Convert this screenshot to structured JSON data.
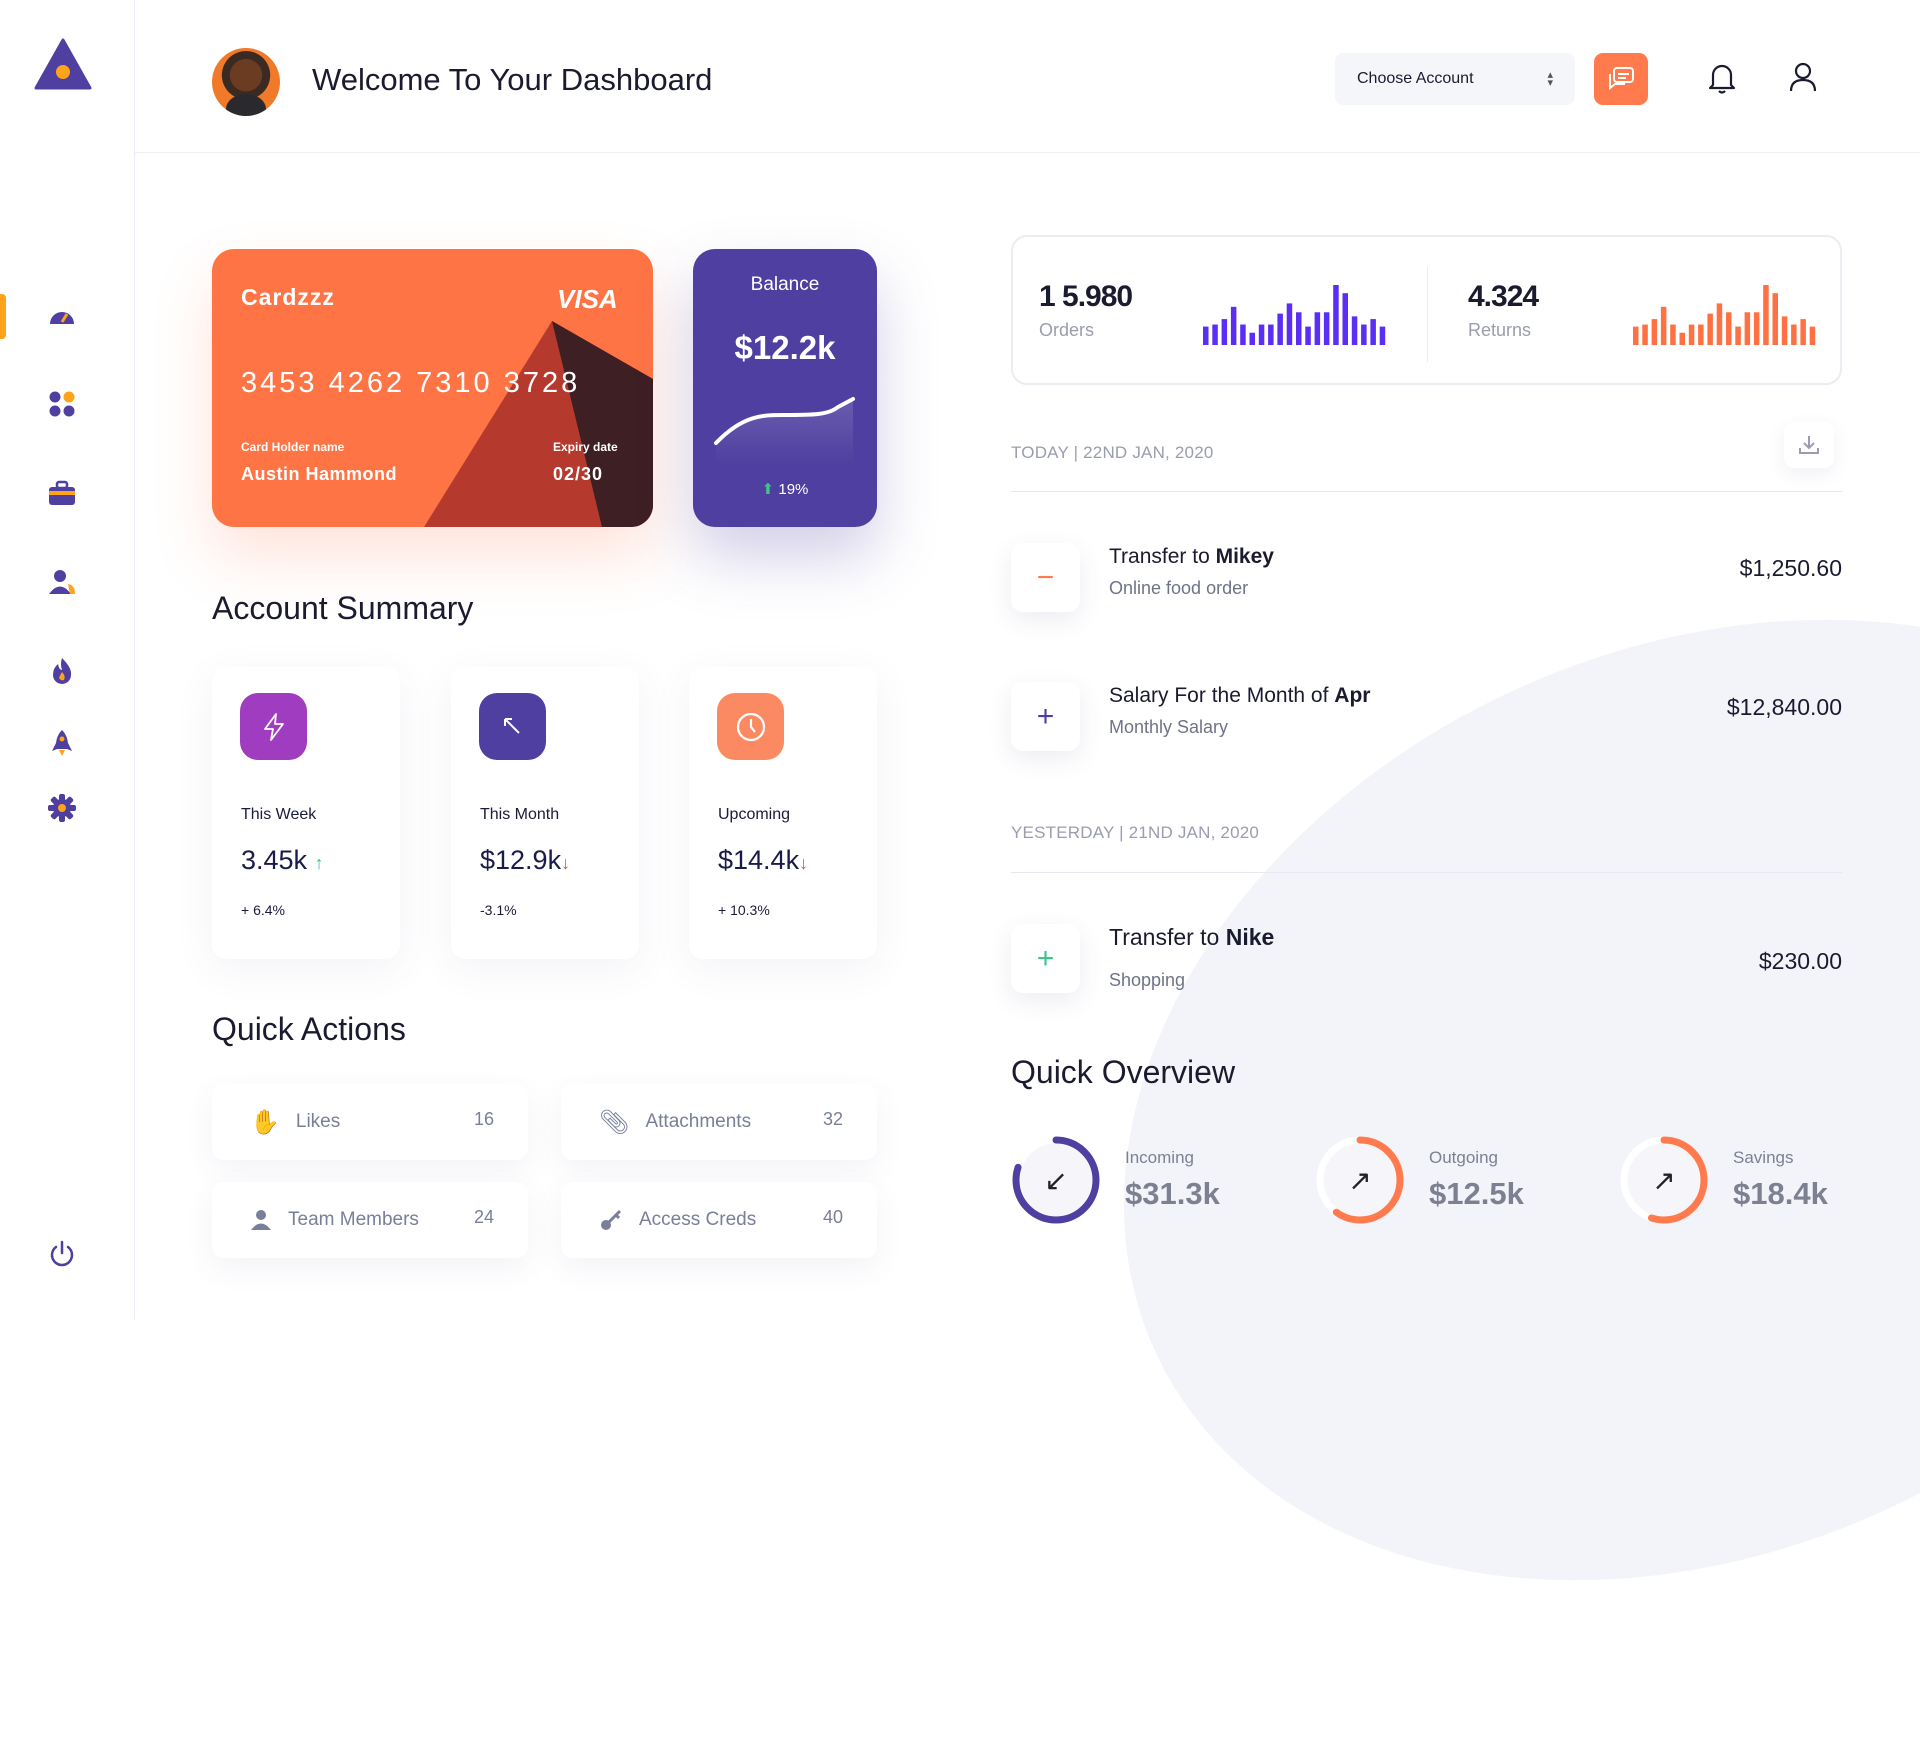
{
  "header": {
    "title": "Welcome To Your Dashboard",
    "account_select": "Choose Account"
  },
  "sidebar": {
    "items": [
      {
        "icon": "gauge-icon",
        "active": true
      },
      {
        "icon": "grid-icon"
      },
      {
        "icon": "briefcase-icon"
      },
      {
        "icon": "users-icon"
      },
      {
        "icon": "flame-icon"
      },
      {
        "icon": "rocket-icon"
      },
      {
        "icon": "gear-icon"
      }
    ],
    "logout_icon": "power-icon"
  },
  "colors": {
    "primary": "#4f3fa0",
    "accent": "#ff7043",
    "purple": "#a03cc0",
    "green": "#3cc48a",
    "red": "#e84a4a",
    "bar_purple": "#5b2ef5"
  },
  "credit_card": {
    "brand_name": "Cardzzz",
    "network": "VISA",
    "number": "3453 4262 7310 3728",
    "holder_label": "Card Holder name",
    "holder": "Austin Hammond",
    "expiry_label": "Expiry date",
    "expiry": "02/30"
  },
  "balance": {
    "label": "Balance",
    "amount": "$12.2k",
    "change": "19%"
  },
  "account_summary": {
    "title": "Account Summary",
    "cards": [
      {
        "label": "This Week",
        "value": "3.45k",
        "trend": "up",
        "change": "+ 6.4%",
        "icon": "lightning-icon",
        "color": "#a03cc0"
      },
      {
        "label": "This Month",
        "value": "$12.9k",
        "trend": "down",
        "change": "-3.1%",
        "icon": "arrow-up-left-icon",
        "color": "#4f3fa0"
      },
      {
        "label": "Upcoming",
        "value": "$14.4k",
        "trend": "down",
        "change": "+ 10.3%",
        "icon": "clock-icon",
        "color": "#fb8a62"
      }
    ]
  },
  "quick_actions": {
    "title": "Quick Actions",
    "items": [
      {
        "label": "Likes",
        "count": "16",
        "icon": "hand-icon"
      },
      {
        "label": "Attachments",
        "count": "32",
        "icon": "paperclip-icon"
      },
      {
        "label": "Team Members",
        "count": "24",
        "icon": "user-icon"
      },
      {
        "label": "Access Creds",
        "count": "40",
        "icon": "key-icon"
      }
    ]
  },
  "stats": {
    "orders": {
      "value": "1 5.980",
      "label": "Orders",
      "bars": [
        54,
        60,
        76,
        112,
        60,
        36,
        60,
        60,
        92,
        122,
        96,
        54,
        96,
        96,
        176,
        152,
        84,
        60,
        76,
        54
      ]
    },
    "returns": {
      "value": "4.324",
      "label": "Returns",
      "bars": [
        54,
        60,
        76,
        112,
        60,
        36,
        60,
        60,
        92,
        122,
        96,
        54,
        96,
        96,
        176,
        152,
        84,
        60,
        76,
        54
      ]
    }
  },
  "transactions": {
    "today_label": "TODAY | 22ND JAN, 2020",
    "yesterday_label": "YESTERDAY | 21ND JAN, 2020",
    "items": [
      {
        "title": "Transfer to ",
        "bold": "Mikey",
        "subtitle": "Online food order",
        "amount": "$1,250.60",
        "sign": "−"
      },
      {
        "title": "Salary For the Month of ",
        "bold": "Apr",
        "subtitle": "Monthly Salary",
        "amount": "$12,840.00",
        "sign": "+"
      },
      {
        "title": "Transfer to ",
        "bold": "Nike",
        "subtitle": "Shopping",
        "amount": "$230.00",
        "sign": "+"
      }
    ]
  },
  "quick_overview": {
    "title": "Quick Overview",
    "items": [
      {
        "label": "Incoming",
        "value": "$31.3k",
        "progress": 0.8,
        "color": "#4f3fa0",
        "arrow": "↙"
      },
      {
        "label": "Outgoing",
        "value": "$12.5k",
        "progress": 0.6,
        "color": "#ff7a4d",
        "arrow": "↗"
      },
      {
        "label": "Savings",
        "value": "$18.4k",
        "progress": 0.55,
        "color": "#ff7a4d",
        "arrow": "↗"
      }
    ]
  }
}
